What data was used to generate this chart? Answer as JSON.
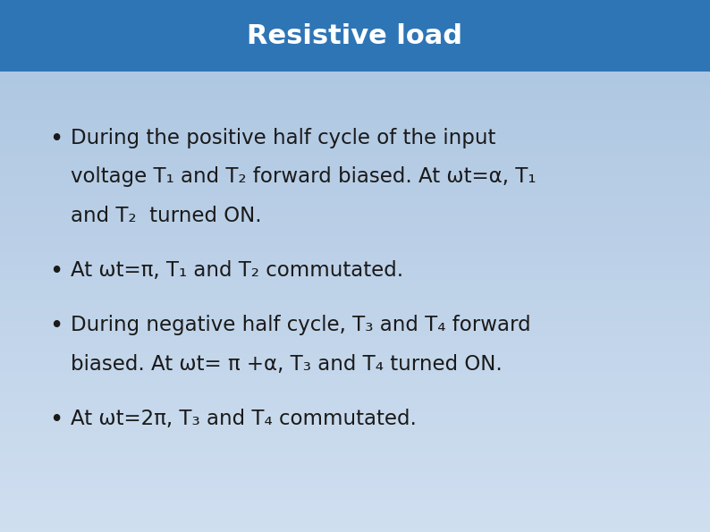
{
  "title": "Resistive load",
  "title_color": "#ffffff",
  "title_bg_color": "#2e75b6",
  "title_fontsize": 22,
  "body_bg_top": "#aac4e0",
  "body_bg_bottom": "#d0dff0",
  "text_color": "#1a1a1a",
  "bullet_fontsize": 16.5,
  "bullets": [
    {
      "lines": [
        "During the positive half cycle of the input",
        "voltage T₁ and T₂ forward biased. At ωt=α, T₁",
        "and T₂  turned ON."
      ]
    },
    {
      "lines": [
        "At ωt=π, T₁ and T₂ commutated."
      ]
    },
    {
      "lines": [
        "During negative half cycle, T₃ and T₄ forward",
        "biased. At ωt= π +α, T₃ and T₄ turned ON."
      ]
    },
    {
      "lines": [
        "At ωt=2π, T₃ and T₄ commutated."
      ]
    }
  ]
}
